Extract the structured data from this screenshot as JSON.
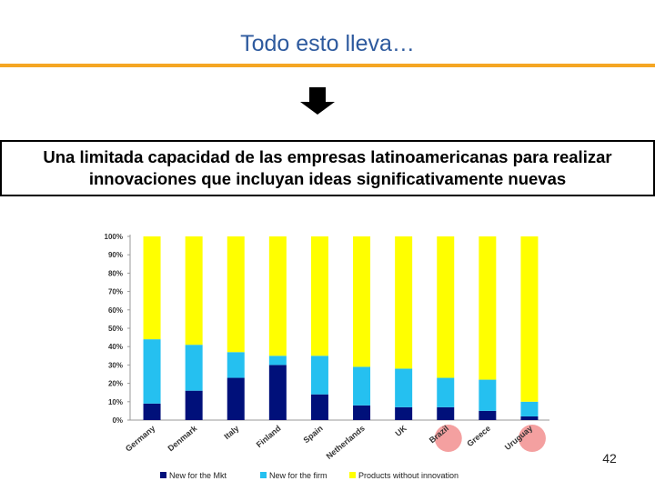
{
  "slide": {
    "title": "Todo esto lleva…",
    "statement": "Una limitada capacidad de las empresas latinoamericanas para realizar innovaciones que incluyan ideas significativamente nuevas",
    "page_number": "42",
    "accent_color": "#f5a623",
    "title_color": "#2e5a9e"
  },
  "chart_data": {
    "type": "bar",
    "stacked": true,
    "categories": [
      "Germany",
      "Denmark",
      "Italy",
      "Finland",
      "Spain",
      "Netherlands",
      "UK",
      "Brazil",
      "Greece",
      "Uruguay"
    ],
    "highlighted": [
      "Brazil",
      "Uruguay"
    ],
    "series": [
      {
        "name": "New for the Mkt",
        "color": "#00107a",
        "values": [
          9,
          16,
          23,
          30,
          14,
          8,
          7,
          7,
          5,
          2
        ]
      },
      {
        "name": "New for the firm",
        "color": "#25c0f0",
        "values": [
          35,
          25,
          14,
          5,
          21,
          21,
          21,
          16,
          17,
          8
        ]
      },
      {
        "name": "Products without innovation",
        "color": "#ffff00",
        "values": [
          56,
          59,
          63,
          65,
          65,
          71,
          72,
          77,
          78,
          90
        ]
      }
    ],
    "yticks": [
      "0%",
      "10%",
      "20%",
      "30%",
      "40%",
      "50%",
      "60%",
      "70%",
      "80%",
      "90%",
      "100%"
    ],
    "ylim": [
      0,
      100
    ],
    "legend_position": "bottom"
  }
}
